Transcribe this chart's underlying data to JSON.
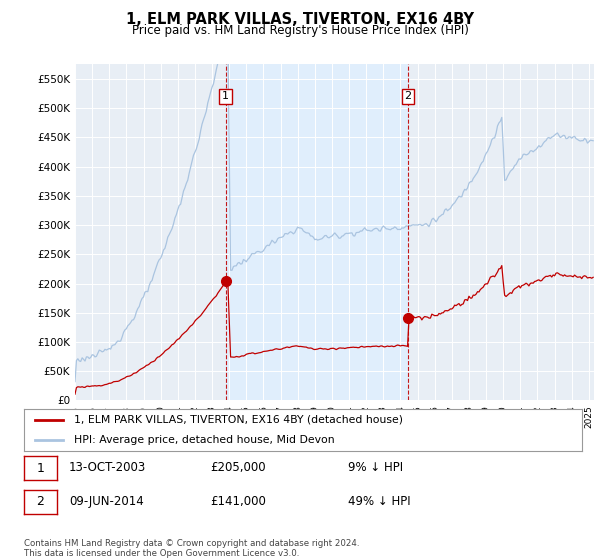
{
  "title": "1, ELM PARK VILLAS, TIVERTON, EX16 4BY",
  "subtitle": "Price paid vs. HM Land Registry's House Price Index (HPI)",
  "ylabel_ticks": [
    "£0",
    "£50K",
    "£100K",
    "£150K",
    "£200K",
    "£250K",
    "£300K",
    "£350K",
    "£400K",
    "£450K",
    "£500K",
    "£550K"
  ],
  "ytick_values": [
    0,
    50000,
    100000,
    150000,
    200000,
    250000,
    300000,
    350000,
    400000,
    450000,
    500000,
    550000
  ],
  "ylim": [
    0,
    575000
  ],
  "hpi_color": "#aac4e0",
  "sale_color": "#c00000",
  "sale1_date_x": 2003.79,
  "sale1_price": 205000,
  "sale1_label": "1",
  "sale2_date_x": 2014.44,
  "sale2_price": 141000,
  "sale2_label": "2",
  "vline_color": "#c00000",
  "shade_color": "#ddeeff",
  "legend_entries": [
    "1, ELM PARK VILLAS, TIVERTON, EX16 4BY (detached house)",
    "HPI: Average price, detached house, Mid Devon"
  ],
  "table_rows": [
    [
      "1",
      "13-OCT-2003",
      "£205,000",
      "9% ↓ HPI"
    ],
    [
      "2",
      "09-JUN-2014",
      "£141,000",
      "49% ↓ HPI"
    ]
  ],
  "footnote": "Contains HM Land Registry data © Crown copyright and database right 2024.\nThis data is licensed under the Open Government Licence v3.0.",
  "xmin": 1995.0,
  "xmax": 2025.3,
  "background_color": "#ffffff",
  "plot_bg_color": "#e8eef5"
}
